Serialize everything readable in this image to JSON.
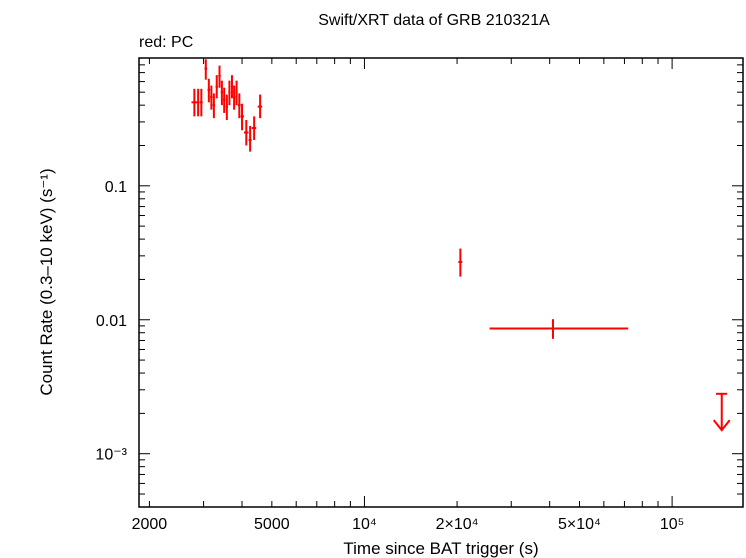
{
  "chart_data": {
    "type": "scatter",
    "title": "Swift/XRT data of GRB 210321A",
    "legend_text": "red: PC",
    "legend_placement": "top-left",
    "xlabel": "Time since BAT trigger (s)",
    "ylabel": "Count Rate (0.3–10 keV) (s⁻¹)",
    "x_scale": "log",
    "y_scale": "log",
    "xlim": [
      1850,
      170000
    ],
    "ylim": [
      0.0004,
      0.9
    ],
    "grid": false,
    "x_tick_labels": [
      {
        "value": 2000,
        "label": "2000"
      },
      {
        "value": 5000,
        "label": "5000"
      },
      {
        "value": 10000,
        "label": "10⁴"
      },
      {
        "value": 20000,
        "label": "2×10⁴"
      },
      {
        "value": 50000,
        "label": "5×10⁴"
      },
      {
        "value": 100000,
        "label": "10⁵"
      }
    ],
    "y_tick_labels": [
      {
        "value": 0.1,
        "label": "0.1"
      },
      {
        "value": 0.01,
        "label": "0.01"
      },
      {
        "value": 0.001,
        "label": "10⁻³"
      }
    ],
    "series": [
      {
        "color": "#ff0000",
        "points": [
          {
            "x": 2800,
            "xerr": [
              2740,
              2860
            ],
            "y": 0.42,
            "yerr": [
              0.33,
              0.53
            ]
          },
          {
            "x": 2880,
            "xerr": [
              2850,
              2910
            ],
            "y": 0.42,
            "yerr": [
              0.33,
              0.53
            ]
          },
          {
            "x": 2950,
            "xerr": [
              2920,
              2980
            ],
            "y": 0.42,
            "yerr": [
              0.33,
              0.53
            ]
          },
          {
            "x": 3050,
            "xerr": [
              3020,
              3080
            ],
            "y": 0.75,
            "yerr": [
              0.62,
              0.88
            ]
          },
          {
            "x": 3120,
            "xerr": [
              3090,
              3150
            ],
            "y": 0.52,
            "yerr": [
              0.42,
              0.63
            ]
          },
          {
            "x": 3180,
            "xerr": [
              3150,
              3210
            ],
            "y": 0.46,
            "yerr": [
              0.37,
              0.56
            ]
          },
          {
            "x": 3240,
            "xerr": [
              3210,
              3270
            ],
            "y": 0.4,
            "yerr": [
              0.32,
              0.49
            ]
          },
          {
            "x": 3310,
            "xerr": [
              3280,
              3340
            ],
            "y": 0.55,
            "yerr": [
              0.45,
              0.67
            ]
          },
          {
            "x": 3380,
            "xerr": [
              3350,
              3410
            ],
            "y": 0.66,
            "yerr": [
              0.54,
              0.79
            ]
          },
          {
            "x": 3440,
            "xerr": [
              3410,
              3470
            ],
            "y": 0.5,
            "yerr": [
              0.4,
              0.61
            ]
          },
          {
            "x": 3500,
            "xerr": [
              3470,
              3530
            ],
            "y": 0.44,
            "yerr": [
              0.35,
              0.54
            ]
          },
          {
            "x": 3570,
            "xerr": [
              3540,
              3600
            ],
            "y": 0.39,
            "yerr": [
              0.31,
              0.48
            ]
          },
          {
            "x": 3640,
            "xerr": [
              3610,
              3670
            ],
            "y": 0.5,
            "yerr": [
              0.4,
              0.61
            ]
          },
          {
            "x": 3710,
            "xerr": [
              3680,
              3740
            ],
            "y": 0.55,
            "yerr": [
              0.45,
              0.67
            ]
          },
          {
            "x": 3770,
            "xerr": [
              3740,
              3800
            ],
            "y": 0.46,
            "yerr": [
              0.37,
              0.56
            ]
          },
          {
            "x": 3840,
            "xerr": [
              3810,
              3870
            ],
            "y": 0.5,
            "yerr": [
              0.4,
              0.61
            ]
          },
          {
            "x": 3920,
            "xerr": [
              3880,
              3960
            ],
            "y": 0.4,
            "yerr": [
              0.32,
              0.49
            ]
          },
          {
            "x": 4000,
            "xerr": [
              3960,
              4060
            ],
            "y": 0.33,
            "yerr": [
              0.26,
              0.41
            ]
          },
          {
            "x": 4130,
            "xerr": [
              4060,
              4200
            ],
            "y": 0.25,
            "yerr": [
              0.2,
              0.31
            ]
          },
          {
            "x": 4250,
            "xerr": [
              4200,
              4300
            ],
            "y": 0.22,
            "yerr": [
              0.18,
              0.28
            ]
          },
          {
            "x": 4380,
            "xerr": [
              4300,
              4450
            ],
            "y": 0.27,
            "yerr": [
              0.22,
              0.33
            ]
          },
          {
            "x": 4580,
            "xerr": [
              4500,
              4650
            ],
            "y": 0.39,
            "yerr": [
              0.32,
              0.48
            ]
          },
          {
            "x": 20500,
            "xerr": [
              20200,
              20800
            ],
            "y": 0.027,
            "yerr": [
              0.021,
              0.034
            ]
          },
          {
            "x": 41000,
            "xerr": [
              25500,
              72000
            ],
            "y": 0.0086,
            "yerr": [
              0.0072,
              0.0101
            ]
          }
        ],
        "upper_limits": [
          {
            "x": 145000,
            "xerr": [
              139000,
              151000
            ],
            "y": 0.0028,
            "arrow_to": 0.0015
          }
        ]
      }
    ]
  }
}
